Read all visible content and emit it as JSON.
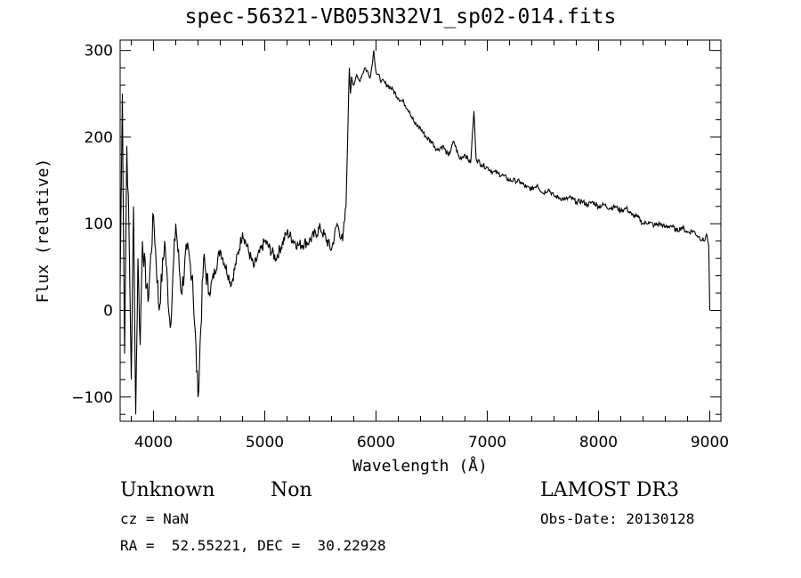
{
  "chart_data": {
    "type": "line",
    "title": "spec-56321-VB053N32V1_sp02-014.fits",
    "xlabel": "Wavelength (Å)",
    "ylabel": "Flux (relative)",
    "xlim": [
      3700,
      9100
    ],
    "ylim": [
      -128,
      312
    ],
    "x_ticks": [
      4000,
      5000,
      6000,
      7000,
      8000,
      9000
    ],
    "y_ticks": [
      -100,
      0,
      100,
      200,
      300
    ],
    "series": [
      {
        "x": [
          3700,
          3720,
          3740,
          3760,
          3780,
          3800,
          3820,
          3840,
          3860,
          3880,
          3900,
          3950,
          4000,
          4050,
          4100,
          4150,
          4200,
          4250,
          4300,
          4350,
          4400,
          4450,
          4500,
          4600,
          4700,
          4800,
          4900,
          5000,
          5100,
          5200,
          5300,
          5400,
          5500,
          5600,
          5650,
          5700,
          5730,
          5750,
          5760,
          5770,
          5780,
          5800,
          5820,
          5850,
          5900,
          5950,
          5980,
          6000,
          6050,
          6100,
          6150,
          6200,
          6250,
          6300,
          6350,
          6400,
          6450,
          6500,
          6550,
          6600,
          6650,
          6700,
          6750,
          6800,
          6850,
          6880,
          6900,
          6950,
          7000,
          7050,
          7100,
          7150,
          7200,
          7250,
          7300,
          7350,
          7400,
          7450,
          7500,
          7550,
          7600,
          7650,
          7700,
          7750,
          7800,
          7850,
          7900,
          7950,
          8000,
          8050,
          8100,
          8150,
          8200,
          8250,
          8300,
          8350,
          8400,
          8450,
          8500,
          8550,
          8600,
          8650,
          8700,
          8750,
          8800,
          8850,
          8900,
          8950,
          8970,
          8990,
          9000
        ],
        "y": [
          30,
          250,
          -50,
          190,
          90,
          -80,
          120,
          -120,
          60,
          -40,
          80,
          10,
          110,
          0,
          80,
          -20,
          100,
          20,
          70,
          40,
          -100,
          60,
          20,
          70,
          30,
          90,
          50,
          80,
          60,
          90,
          75,
          80,
          95,
          70,
          100,
          80,
          120,
          230,
          280,
          250,
          270,
          260,
          270,
          265,
          280,
          270,
          300,
          275,
          265,
          260,
          255,
          245,
          240,
          230,
          215,
          210,
          200,
          195,
          185,
          190,
          178,
          195,
          175,
          180,
          170,
          230,
          175,
          168,
          165,
          160,
          158,
          155,
          150,
          150,
          148,
          142,
          140,
          145,
          135,
          140,
          132,
          130,
          128,
          130,
          125,
          126,
          122,
          125,
          120,
          122,
          118,
          120,
          115,
          118,
          110,
          108,
          100,
          102,
          98,
          100,
          96,
          98,
          92,
          96,
          90,
          92,
          85,
          80,
          88,
          76,
          0
        ]
      }
    ]
  },
  "annotations": {
    "object_class": "Unknown",
    "subclass": "Non",
    "survey": "LAMOST DR3",
    "redshift": "cz = NaN",
    "obs_date": "Obs-Date: 20130128",
    "coords": "RA =  52.55221, DEC =  30.22928"
  }
}
